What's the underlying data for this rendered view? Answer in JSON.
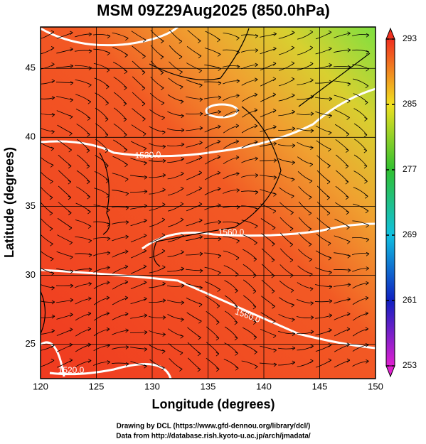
{
  "title": "MSM 09Z29Aug2025 (850.0hPa)",
  "x_axis": {
    "label": "Longitude (degrees)",
    "lim": [
      120,
      150
    ],
    "ticks": [
      120,
      125,
      130,
      135,
      140,
      145,
      150
    ]
  },
  "y_axis": {
    "label": "Latitude  (degrees)",
    "lim": [
      22.5,
      48
    ],
    "ticks": [
      25,
      30,
      35,
      40,
      45
    ]
  },
  "colorbar": {
    "lim": [
      253,
      293
    ],
    "ticks": [
      253,
      261,
      269,
      277,
      285,
      293
    ]
  },
  "contour_labels": [
    "1520.0",
    "1560.0",
    "1560.0",
    "1520.0"
  ],
  "credits": [
    "Drawing by DCL (https://www.gfd-dennou.org/library/dcl/)",
    "Data from http://database.rish.kyoto-u.ac.jp/arch/jmadata/"
  ]
}
